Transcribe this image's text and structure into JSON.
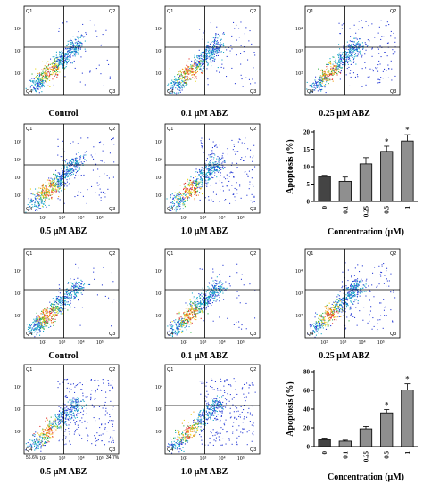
{
  "figure": {
    "upper": {
      "flow_panels": [
        {
          "label": "Control",
          "quadrants": [
            "Q1",
            "Q2",
            "Q4",
            "Q3"
          ],
          "y_ticks": [
            "10⁴",
            "10³",
            "10²"
          ],
          "x_ticks": []
        },
        {
          "label": "0.1 μM ABZ",
          "quadrants": [
            "Q1",
            "Q2",
            "Q4",
            "Q3"
          ],
          "y_ticks": [
            "10⁴",
            "10³",
            "10²"
          ],
          "x_ticks": []
        },
        {
          "label": "0.25 μM ABZ",
          "quadrants": [
            "Q1",
            "Q2",
            "Q4",
            "Q3"
          ],
          "y_ticks": [
            "10⁴",
            "10³",
            "10²"
          ],
          "x_ticks": []
        },
        {
          "label": "0.5 μM ABZ",
          "quadrants": [
            "Q1",
            "Q2",
            "Q4",
            "Q3"
          ],
          "y_ticks": [
            "10⁵",
            "10⁴",
            "10³",
            "10²"
          ],
          "x_ticks": [
            "10²",
            "10³",
            "10⁴",
            "10⁵"
          ]
        },
        {
          "label": "1.0 μM ABZ",
          "quadrants": [
            "Q1",
            "Q2",
            "Q4",
            "Q3"
          ],
          "y_ticks": [
            "10⁵",
            "10⁴",
            "10³",
            "10²"
          ],
          "x_ticks": [
            "10²",
            "10³",
            "10⁴",
            "10⁵"
          ]
        }
      ]
    },
    "lower": {
      "flow_panels": [
        {
          "label": "Control",
          "quadrants": [
            "Q1",
            "Q2",
            "Q4",
            "Q3"
          ],
          "y_ticks": [
            "10⁴",
            "10³",
            "10²"
          ],
          "x_ticks": [
            "10²",
            "10³",
            "10⁴",
            "10⁵"
          ]
        },
        {
          "label": "0.1 μM ABZ",
          "quadrants": [
            "Q1",
            "Q2",
            "Q4",
            "Q3"
          ],
          "y_ticks": [
            "10⁴",
            "10³",
            "10²"
          ],
          "x_ticks": [
            "10²",
            "10³",
            "10⁴",
            "10⁵"
          ]
        },
        {
          "label": "0.25 μM ABZ",
          "quadrants": [
            "Q1",
            "Q2",
            "Q4",
            "Q3"
          ],
          "y_ticks": [
            "10⁴",
            "10³",
            "10²"
          ],
          "x_ticks": [
            "10²",
            "10³",
            "10⁴",
            "10⁵"
          ]
        },
        {
          "label": "0.5 μM ABZ",
          "quadrants": [
            "Q1",
            "Q2",
            "Q4",
            "Q3"
          ],
          "y_ticks": [
            "10⁴",
            "10³",
            "10²"
          ],
          "x_ticks": [
            "10²",
            "10³",
            "10⁴",
            "10⁵"
          ],
          "q4_pct": "56.6%",
          "q3_pct": "34.7%"
        },
        {
          "label": "1.0 μM ABZ",
          "quadrants": [
            "Q1",
            "Q2",
            "Q4",
            "Q3"
          ],
          "y_ticks": [
            "10⁴",
            "10³",
            "10²"
          ],
          "x_ticks": [
            "10²",
            "10³",
            "10⁴",
            "10⁵"
          ]
        }
      ]
    }
  },
  "chart_data": [
    {
      "type": "bar",
      "categories": [
        "0",
        "0.1",
        "0.25",
        "0.5",
        "1"
      ],
      "values": [
        7.2,
        5.8,
        10.8,
        14.4,
        17.4
      ],
      "errors": [
        0.3,
        1.2,
        1.8,
        1.5,
        1.8
      ],
      "significance": [
        "",
        "",
        "",
        "*",
        "*"
      ],
      "xlabel": "Concentration (μM)",
      "ylabel": "Apoptosis (%)",
      "ylim": [
        0,
        20
      ],
      "yticks": [
        "0",
        "5",
        "10",
        "15",
        "20"
      ]
    },
    {
      "type": "bar",
      "categories": [
        "0",
        "0.1",
        "0.25",
        "0.5",
        "1"
      ],
      "values": [
        7.5,
        5.8,
        19.0,
        36.0,
        60.5
      ],
      "errors": [
        1.5,
        1.0,
        2.5,
        3.5,
        6.5
      ],
      "significance": [
        "",
        "",
        "",
        "*",
        "*"
      ],
      "xlabel": "Concentration (μM)",
      "ylabel": "Apoptosis (%)",
      "ylim": [
        0,
        80
      ],
      "yticks": [
        "0",
        "20",
        "40",
        "60",
        "80"
      ]
    }
  ]
}
